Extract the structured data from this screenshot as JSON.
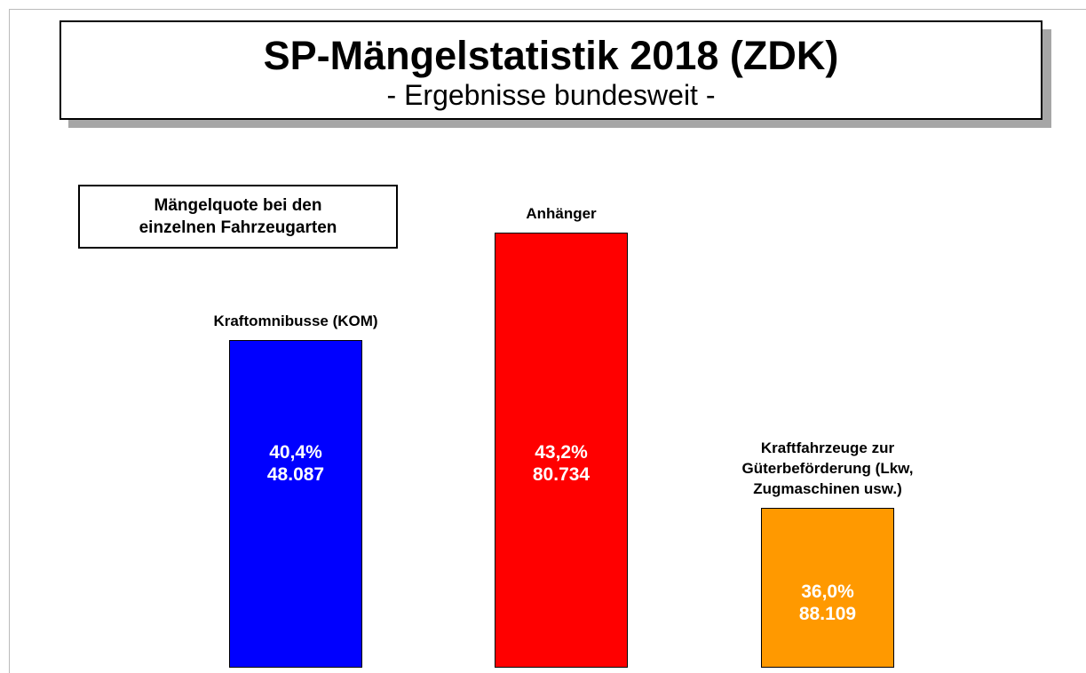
{
  "chart_data": {
    "type": "bar",
    "title": "SP-Mängelstatistik 2018 (ZDK)",
    "subtitle": "- Ergebnisse bundesweit -",
    "legend_text": "Mängelquote bei den einzelnen Fahrzeugarten",
    "categories": [
      "Kraftomnibusse (KOM)",
      "Anhänger",
      "Kraftfahrzeuge zur Güterbeförderung (Lkw, Zugmaschinen usw.)"
    ],
    "values": [
      40.4,
      43.2,
      36.0
    ],
    "value_labels": [
      "40,4%",
      "43,2%",
      "36,0%"
    ],
    "counts": [
      48087,
      80734,
      88109
    ],
    "count_labels": [
      "48.087",
      "80.734",
      "88.109"
    ],
    "colors": [
      "#0000ff",
      "#ff0000",
      "#ff9900"
    ],
    "ylim": [
      31.8,
      44
    ]
  }
}
